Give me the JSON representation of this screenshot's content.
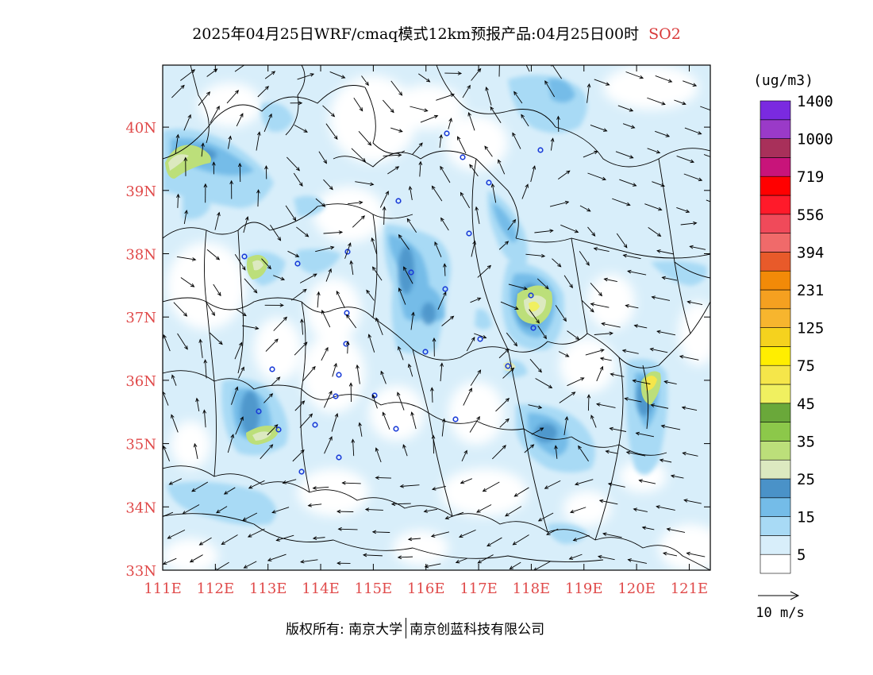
{
  "title": {
    "main": "2025年04月25日WRF/cmaq模式12km预报产品:04月25日00时",
    "species": "SO2"
  },
  "map": {
    "lon_ticks": [
      "111E",
      "112E",
      "113E",
      "114E",
      "115E",
      "116E",
      "117E",
      "118E",
      "119E",
      "120E",
      "121E"
    ],
    "lat_ticks": [
      "33N",
      "34N",
      "35N",
      "36N",
      "37N",
      "38N",
      "39N",
      "40N"
    ],
    "lon_range": [
      111,
      121.4
    ],
    "lat_range": [
      33,
      40.98
    ]
  },
  "colorbar": {
    "unit": "(ug/m3)",
    "labels": [
      "5",
      "15",
      "25",
      "35",
      "45",
      "75",
      "125",
      "231",
      "394",
      "556",
      "719",
      "1000",
      "1400"
    ],
    "colors": [
      "#ffffff",
      "#d8eefa",
      "#a8daf5",
      "#74bce8",
      "#4a92c8",
      "#dce9c0",
      "#bcdf7a",
      "#8cc84a",
      "#6aa83a",
      "#f0f060",
      "#f5e64a",
      "#ffee00",
      "#f5d21e",
      "#f7b52e",
      "#f5a020",
      "#f28a08",
      "#e85a2a",
      "#f06a6a",
      "#f04a5a",
      "#ff1a2a",
      "#ff0000",
      "#c8147a",
      "#a8305a",
      "#9a3ac8",
      "#7a2ae0"
    ]
  },
  "wind_legend": {
    "label": "10 m/s"
  },
  "credit": {
    "left": "版权所有: 南京大学",
    "right": "南京创蓝科技有限公司"
  }
}
